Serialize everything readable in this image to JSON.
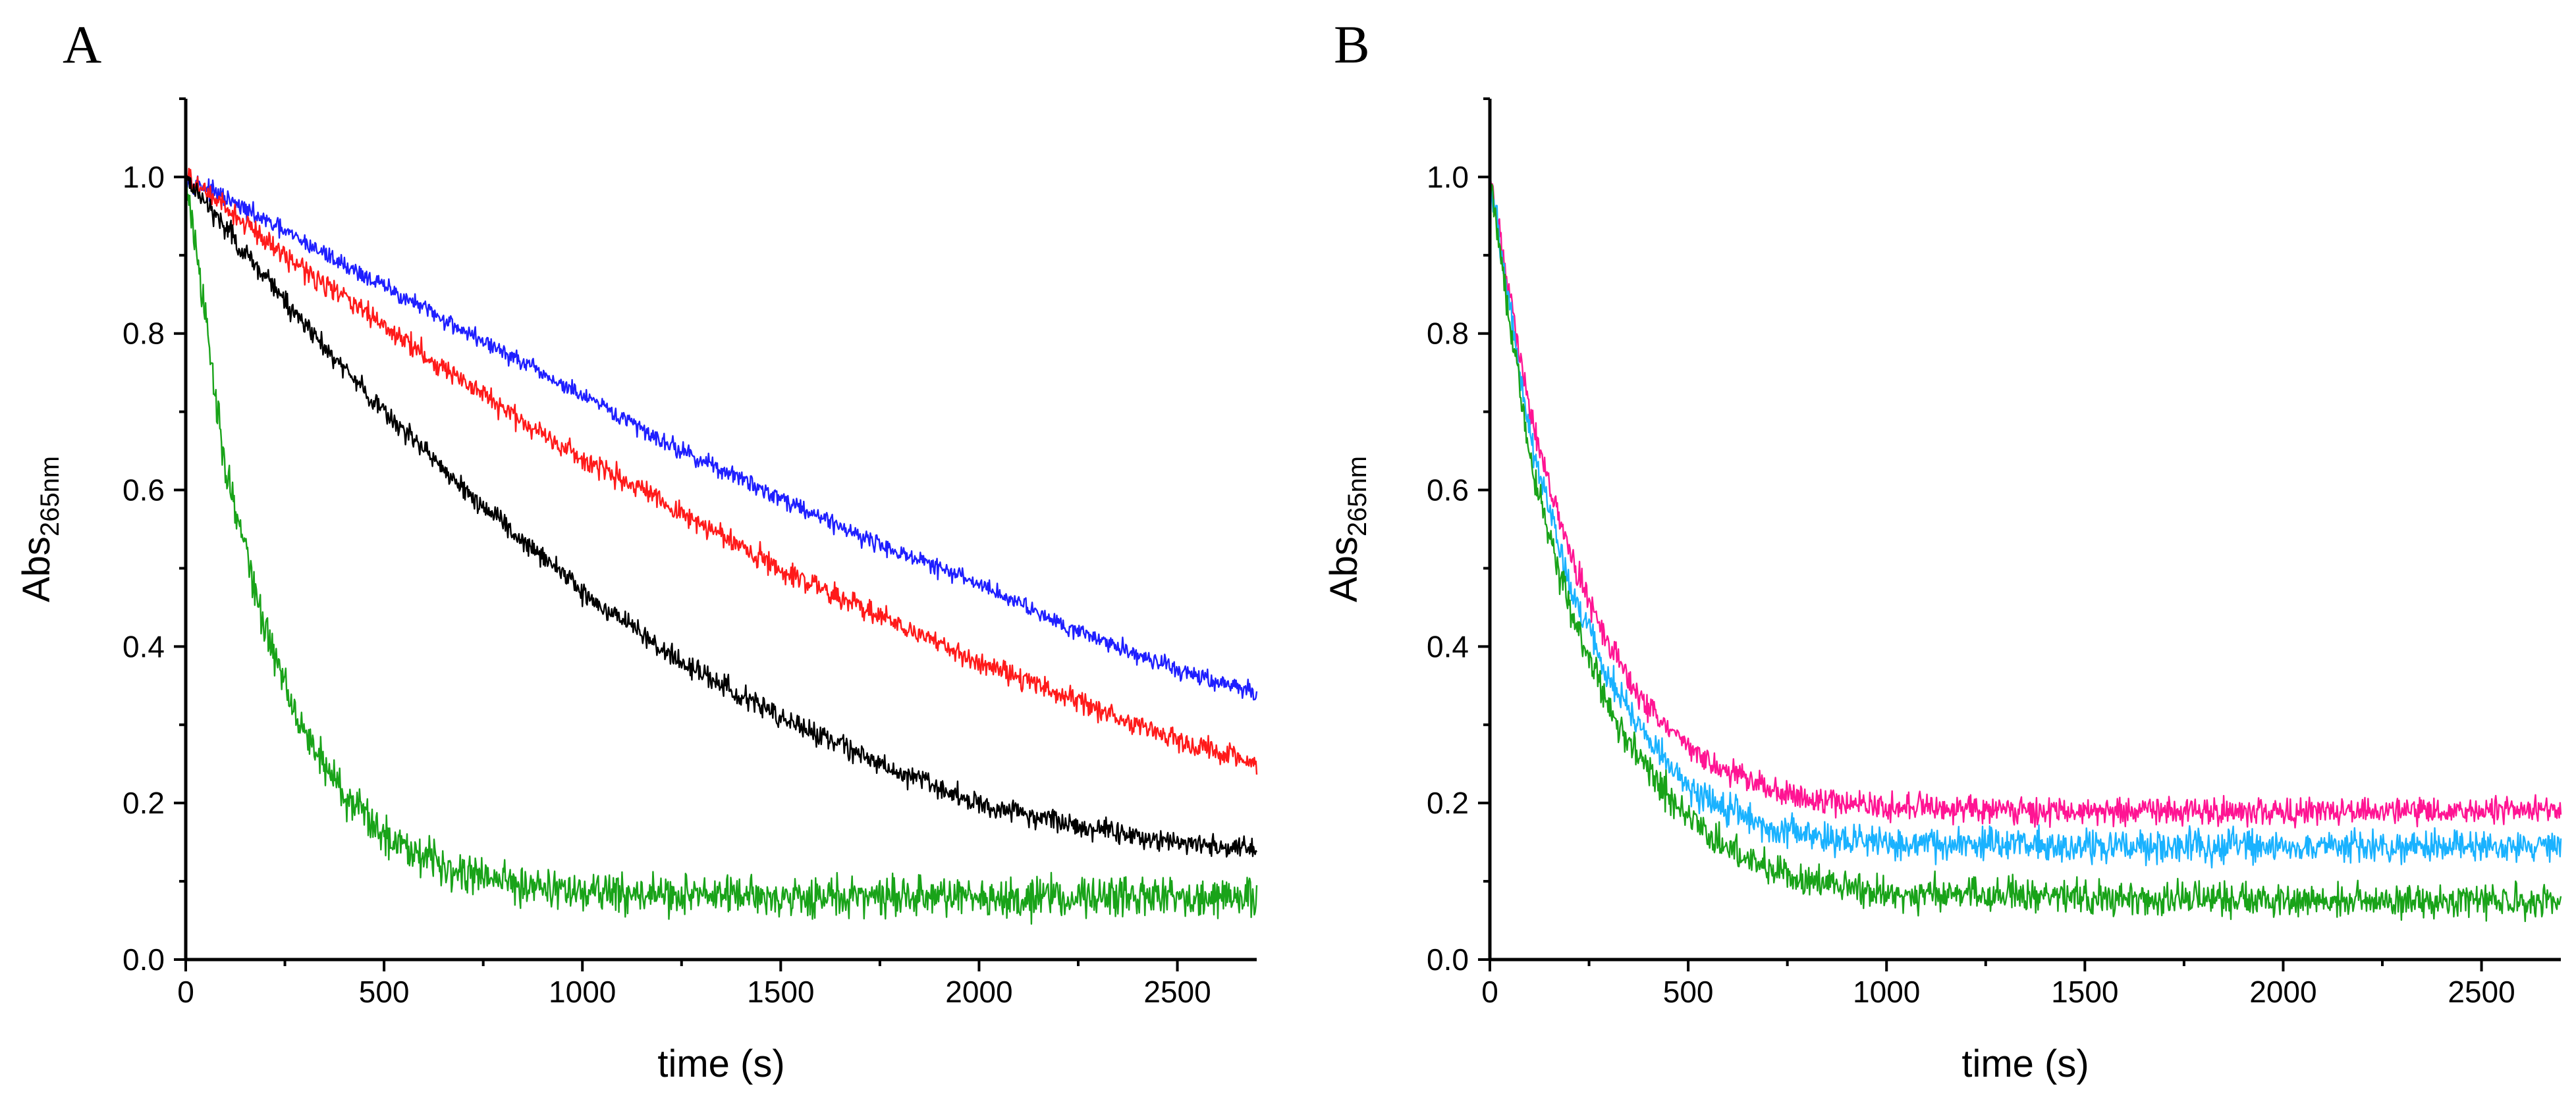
{
  "chart_data": [
    {
      "panel_label": "A",
      "type": "line",
      "xlabel": "time (s)",
      "ylabel": {
        "main": "Abs",
        "sub": "265nm"
      },
      "xlim": [
        0,
        2700
      ],
      "ylim": [
        0,
        1.1
      ],
      "xticks": [
        0,
        500,
        1000,
        1500,
        2000,
        2500
      ],
      "yticks": [
        0.0,
        0.2,
        0.4,
        0.6,
        0.8,
        1.0
      ],
      "xtick_labels": [
        "0",
        "500",
        "1000",
        "1500",
        "2000",
        "2500"
      ],
      "ytick_labels": [
        "0.0",
        "0.2",
        "0.4",
        "0.6",
        "0.8",
        "1.0"
      ],
      "grid": false,
      "series": [
        {
          "name": "blue",
          "color": "#1f1fff",
          "noise": 0.008,
          "x": [
            0,
            250,
            500,
            750,
            1000,
            1250,
            1500,
            1750,
            2000,
            2250,
            2500,
            2700
          ],
          "y": [
            1.0,
            0.93,
            0.86,
            0.79,
            0.72,
            0.65,
            0.59,
            0.53,
            0.48,
            0.42,
            0.37,
            0.34
          ]
        },
        {
          "name": "red",
          "color": "#ff1a1a",
          "noise": 0.01,
          "x": [
            0,
            250,
            500,
            750,
            1000,
            1250,
            1500,
            1750,
            2000,
            2250,
            2500,
            2700
          ],
          "y": [
            1.0,
            0.9,
            0.81,
            0.72,
            0.64,
            0.57,
            0.5,
            0.44,
            0.38,
            0.33,
            0.28,
            0.25
          ]
        },
        {
          "name": "black",
          "color": "#000000",
          "noise": 0.01,
          "x": [
            0,
            250,
            500,
            750,
            1000,
            1250,
            1500,
            1750,
            2000,
            2250,
            2500,
            2700
          ],
          "y": [
            1.0,
            0.84,
            0.7,
            0.58,
            0.47,
            0.38,
            0.31,
            0.25,
            0.2,
            0.17,
            0.15,
            0.14
          ]
        },
        {
          "name": "green",
          "color": "#19a319",
          "noise": 0.018,
          "x": [
            0,
            100,
            200,
            300,
            400,
            500,
            700,
            1000,
            1500,
            2000,
            2700
          ],
          "y": [
            1.0,
            0.63,
            0.42,
            0.29,
            0.21,
            0.16,
            0.11,
            0.085,
            0.08,
            0.08,
            0.08
          ]
        }
      ]
    },
    {
      "panel_label": "B",
      "type": "line",
      "xlabel": "time (s)",
      "ylabel": {
        "main": "Abs",
        "sub": "265nm"
      },
      "xlim": [
        0,
        2700
      ],
      "ylim": [
        0,
        1.1
      ],
      "xticks": [
        0,
        500,
        1000,
        1500,
        2000,
        2500
      ],
      "yticks": [
        0.0,
        0.2,
        0.4,
        0.6,
        0.8,
        1.0
      ],
      "xtick_labels": [
        "0",
        "500",
        "1000",
        "1500",
        "2000",
        "2500"
      ],
      "ytick_labels": [
        "0.0",
        "0.2",
        "0.4",
        "0.6",
        "0.8",
        "1.0"
      ],
      "grid": false,
      "series": [
        {
          "name": "magenta",
          "color": "#ff1493",
          "noise": 0.012,
          "x": [
            0,
            100,
            200,
            300,
            400,
            500,
            600,
            700,
            800,
            1000,
            1500,
            2000,
            2700
          ],
          "y": [
            1.0,
            0.7,
            0.52,
            0.4,
            0.32,
            0.27,
            0.24,
            0.22,
            0.205,
            0.195,
            0.19,
            0.19,
            0.19
          ]
        },
        {
          "name": "cyan",
          "color": "#1ab2ff",
          "noise": 0.014,
          "x": [
            0,
            100,
            200,
            300,
            400,
            500,
            600,
            700,
            800,
            1000,
            1500,
            2000,
            2700
          ],
          "y": [
            1.0,
            0.67,
            0.48,
            0.36,
            0.28,
            0.22,
            0.19,
            0.17,
            0.16,
            0.15,
            0.145,
            0.145,
            0.145
          ]
        },
        {
          "name": "green",
          "color": "#19a319",
          "noise": 0.015,
          "x": [
            0,
            100,
            200,
            300,
            400,
            500,
            600,
            700,
            800,
            1000,
            1500,
            2000,
            2700
          ],
          "y": [
            1.0,
            0.64,
            0.45,
            0.32,
            0.24,
            0.18,
            0.14,
            0.115,
            0.1,
            0.085,
            0.08,
            0.075,
            0.075
          ]
        }
      ]
    }
  ]
}
